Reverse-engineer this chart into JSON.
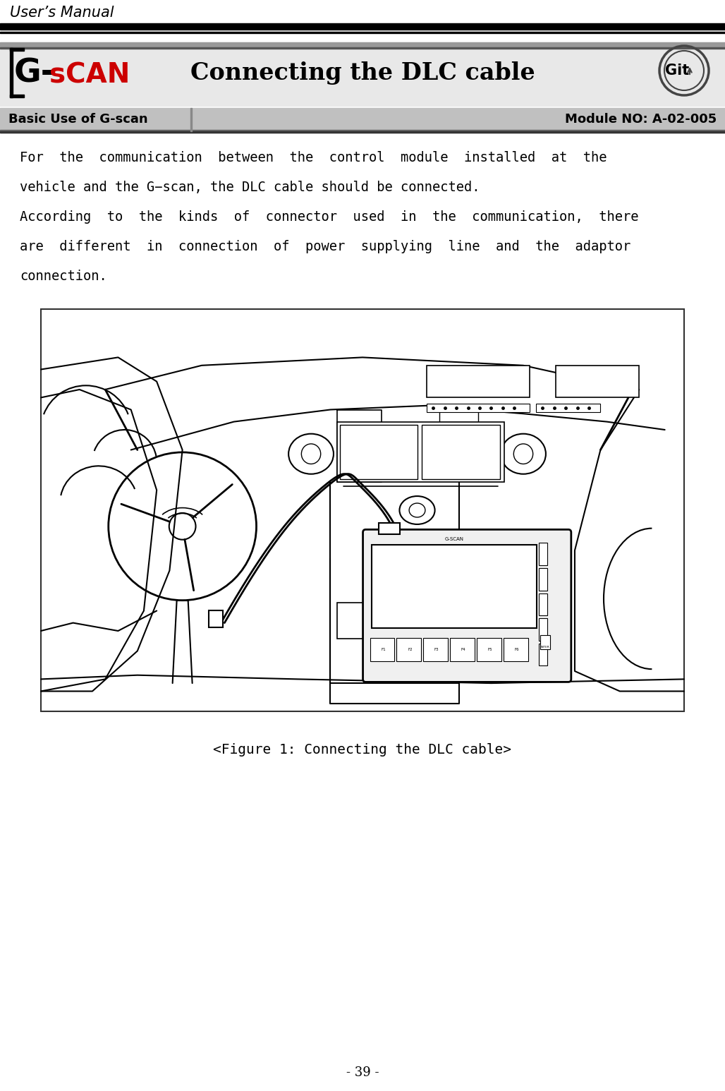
{
  "title": "User’s Manual",
  "header_title": "Connecting the DLC cable",
  "left_label": "Basic Use of G-scan",
  "right_label": "Module NO: A-02-005",
  "body_line1": "For  the  communication  between  the  control  module  installed  at  the",
  "body_line2": "vehicle and the G−scan, the DLC cable should be connected.",
  "body_line3": "According  to  the  kinds  of  connector  used  in  the  communication,  there",
  "body_line4": "are  different  in  connection  of  power  supplying  line  and  the  adaptor",
  "body_line5": "connection.",
  "figure_caption": "<Figure 1: Connecting the DLC cable>",
  "page_number": "- 39 -",
  "bg_color": "#ffffff",
  "text_color": "#000000",
  "line_color": "#000000",
  "header_bg": "#e0e0e0",
  "subheader_bg": "#c8c8c8",
  "header_top_bar": "#888888",
  "black_bar": "#000000"
}
